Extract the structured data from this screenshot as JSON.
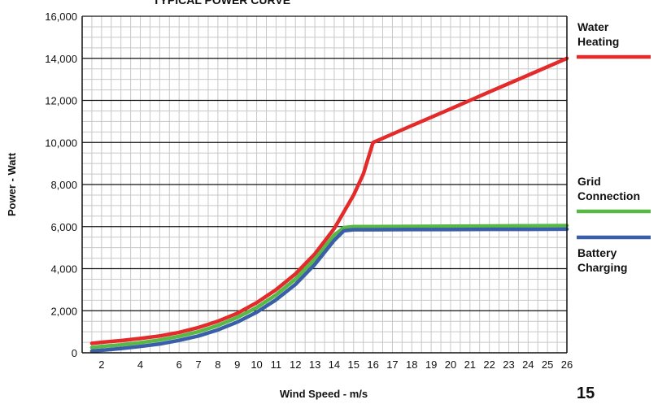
{
  "chart_data": {
    "type": "line",
    "title": "TYPICAL POWER CURVE",
    "xlabel": "Wind Speed - m/s",
    "ylabel": "Power - Watt",
    "xlim": [
      1,
      26
    ],
    "ylim": [
      0,
      16000
    ],
    "x_ticks": [
      2,
      4,
      6,
      7,
      8,
      9,
      10,
      11,
      12,
      13,
      14,
      15,
      16,
      17,
      18,
      19,
      20,
      21,
      22,
      23,
      24,
      25,
      26
    ],
    "y_ticks": [
      0,
      2000,
      4000,
      6000,
      8000,
      10000,
      12000,
      14000,
      16000
    ],
    "y_tick_labels": [
      "0",
      "2,000",
      "4,000",
      "6,000",
      "8,000",
      "10,000",
      "12,000",
      "14,000",
      "16,000"
    ],
    "grid": true,
    "legend": "right",
    "series": [
      {
        "name": "Water Heating",
        "legend_lines": [
          "Water",
          "Heating"
        ],
        "color": "#e32b2b",
        "x": [
          1.5,
          2,
          3,
          4,
          5,
          6,
          7,
          8,
          9,
          10,
          11,
          12,
          13,
          14,
          15,
          15.5,
          16,
          18,
          20,
          21,
          22,
          24,
          26
        ],
        "y": [
          450,
          500,
          580,
          680,
          800,
          970,
          1200,
          1500,
          1880,
          2380,
          3000,
          3750,
          4700,
          5900,
          7500,
          8500,
          10000,
          10800,
          11600,
          12000,
          12400,
          13200,
          14000
        ]
      },
      {
        "name": "Grid Connection",
        "legend_lines": [
          "Grid",
          "Connection"
        ],
        "color": "#58b947",
        "x": [
          1.5,
          2,
          3,
          4,
          5,
          6,
          7,
          8,
          9,
          10,
          11,
          12,
          13,
          14,
          14.5,
          15,
          16,
          18,
          20,
          22,
          24,
          26
        ],
        "y": [
          250,
          300,
          380,
          480,
          610,
          780,
          1000,
          1300,
          1680,
          2150,
          2750,
          3500,
          4450,
          5600,
          5950,
          6000,
          6000,
          6010,
          6020,
          6030,
          6040,
          6050
        ]
      },
      {
        "name": "Battery Charging",
        "legend_lines": [
          "Battery",
          "Charging"
        ],
        "color": "#3a5fa8",
        "x": [
          1.5,
          2,
          3,
          4,
          5,
          6,
          7,
          8,
          9,
          10,
          11,
          12,
          13,
          14,
          14.5,
          15,
          16,
          18,
          20,
          22,
          24,
          26
        ],
        "y": [
          80,
          120,
          200,
          300,
          420,
          590,
          800,
          1090,
          1460,
          1930,
          2520,
          3250,
          4200,
          5350,
          5800,
          5850,
          5850,
          5860,
          5860,
          5870,
          5870,
          5880
        ]
      }
    ]
  },
  "page_number": "15"
}
